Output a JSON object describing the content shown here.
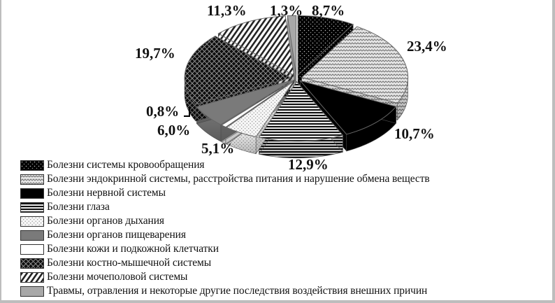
{
  "chart_data": {
    "type": "pie",
    "style": "3d-exploded",
    "title": "",
    "start_angle": "12 o'clock, clockwise",
    "legend_position": "bottom-left",
    "series": [
      {
        "name": "Болезни системы кровообращения",
        "value": 8.7,
        "label": "8,7%",
        "pattern": "dots-on-black"
      },
      {
        "name": "Болезни эндокринной системы, расстройства питания и нарушение обмена веществ",
        "value": 23.4,
        "label": "23,4%",
        "pattern": "zigzag"
      },
      {
        "name": "Болезни нервной системы",
        "value": 10.7,
        "label": "10,7%",
        "pattern": "solid-black"
      },
      {
        "name": "Болезни глаза",
        "value": 12.9,
        "label": "12,9%",
        "pattern": "horizontal-lines"
      },
      {
        "name": "Болезни органов дыхания",
        "value": 5.1,
        "label": "5,1%",
        "pattern": "dots-on-white"
      },
      {
        "name": "Болезни органов пищеварения",
        "value": 6.0,
        "label": "6,0%",
        "pattern": "solid-gray"
      },
      {
        "name": "Болезни кожи и подкожной клетчатки",
        "value": 0.8,
        "label": "0,8%",
        "pattern": "solid-white"
      },
      {
        "name": "Болезни костно-мышечной системы",
        "value": 19.7,
        "label": "19,7%",
        "pattern": "crosshatch"
      },
      {
        "name": "Болезни мочеполовой системы",
        "value": 11.3,
        "label": "11,3%",
        "pattern": "diagonal-stripes"
      },
      {
        "name": "Травмы, отравления и некоторые другие последствия воздействия внешних причин",
        "value": 1.3,
        "label": "1,3%",
        "pattern": "solid-light-gray"
      }
    ],
    "categories": [
      "Болезни системы кровообращения",
      "Болезни эндокринной системы, расстройства питания и нарушение обмена веществ",
      "Болезни нервной системы",
      "Болезни глаза",
      "Болезни органов дыхания",
      "Болезни органов пищеварения",
      "Болезни кожи и подкожной клетчатки",
      "Болезни костно-мышечной системы",
      "Болезни мочеполовой системы",
      "Травмы, отравления и некоторые другие последствия воздействия внешних причин"
    ],
    "values": [
      8.7,
      23.4,
      10.7,
      12.9,
      5.1,
      6.0,
      0.8,
      19.7,
      11.3,
      1.3
    ]
  },
  "labels": {
    "s0": "8,7%",
    "s1": "23,4%",
    "s2": "10,7%",
    "s3": "12,9%",
    "s4": "5,1%",
    "s5": "6,0%",
    "s6": "0,8%",
    "s7": "19,7%",
    "s8": "11,3%",
    "s9": "1,3%"
  },
  "legend": {
    "items": [
      {
        "label": "Болезни системы кровообращения"
      },
      {
        "label": "Болезни эндокринной системы, расстройства питания и нарушение обмена веществ"
      },
      {
        "label": "Болезни нервной системы"
      },
      {
        "label": "Болезни глаза"
      },
      {
        "label": "Болезни органов дыхания"
      },
      {
        "label": "Болезни органов пищеварения"
      },
      {
        "label": "Болезни кожи и подкожной клетчатки"
      },
      {
        "label": "Болезни костно-мышечной системы"
      },
      {
        "label": "Болезни мочеполовой системы"
      },
      {
        "label": "Травмы, отравления и некоторые другие последствия воздействия внешних причин"
      }
    ]
  },
  "colors": {
    "frame_border": "#bdbdbd",
    "black": "#000000",
    "dark_gray": "#7a7a7a",
    "light_gray": "#a8a8a8",
    "white": "#ffffff"
  }
}
